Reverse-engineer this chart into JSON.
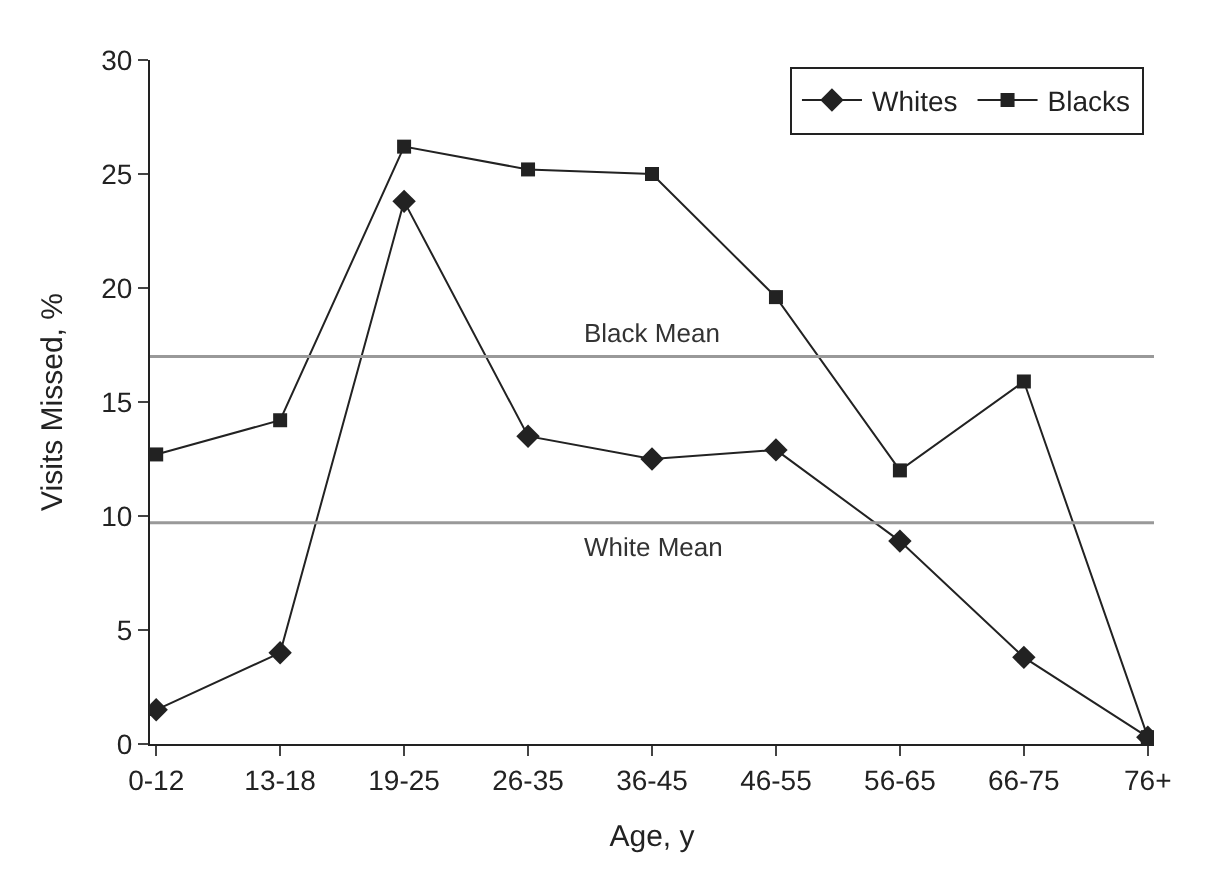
{
  "chart_data": {
    "type": "line",
    "xlabel": "Age, y",
    "ylabel": "Visits Missed, %",
    "categories": [
      "0-12",
      "13-18",
      "19-25",
      "26-35",
      "36-45",
      "46-55",
      "56-65",
      "66-75",
      "76+"
    ],
    "series": [
      {
        "name": "Whites",
        "color": "#222222",
        "marker": "diamond",
        "values": [
          1.5,
          4.0,
          23.8,
          13.5,
          12.5,
          12.9,
          8.9,
          3.8,
          0.3
        ]
      },
      {
        "name": "Blacks",
        "color": "#222222",
        "marker": "square",
        "values": [
          12.7,
          14.2,
          26.2,
          25.2,
          25.0,
          19.6,
          12.0,
          15.9,
          0.3
        ]
      }
    ],
    "ylim": [
      0,
      30
    ],
    "yticks": [
      0,
      5,
      10,
      15,
      20,
      25,
      30
    ],
    "ref_lines": [
      {
        "axis": "y",
        "value": 17.0,
        "label": "Black Mean",
        "color": "#999999"
      },
      {
        "axis": "y",
        "value": 9.7,
        "label": "White Mean",
        "color": "#999999"
      }
    ],
    "legend": "top right",
    "line_style": "solid"
  }
}
